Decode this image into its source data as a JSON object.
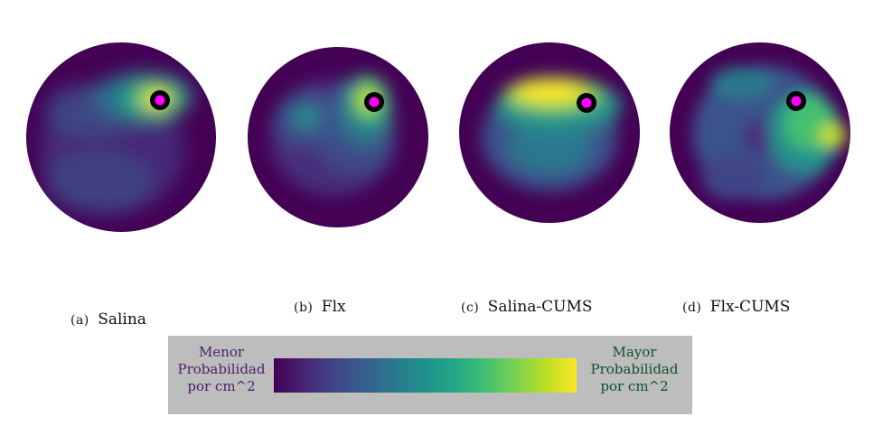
{
  "palette": [
    "#440154",
    "#482475",
    "#414487",
    "#355f8d",
    "#2a788e",
    "#21918c",
    "#22a884",
    "#44bf70",
    "#7ad151",
    "#bddf26",
    "#fde725"
  ],
  "marker": {
    "ring_color": "#000000",
    "dot_color": "#ff00ff"
  },
  "panels": [
    {
      "tag": "(a)",
      "label": "Salina"
    },
    {
      "tag": "(b)",
      "label": "Flx"
    },
    {
      "tag": "(c)",
      "label": "Salina-CUMS"
    },
    {
      "tag": "(d)",
      "label": "Flx-CUMS"
    }
  ],
  "legend": {
    "low_line1": "Menor",
    "low_line2": "Probabilidad",
    "low_line3": "por cm^2",
    "high_line1": "Mayor",
    "high_line2": "Probabilidad",
    "high_line3": "por cm^2"
  }
}
